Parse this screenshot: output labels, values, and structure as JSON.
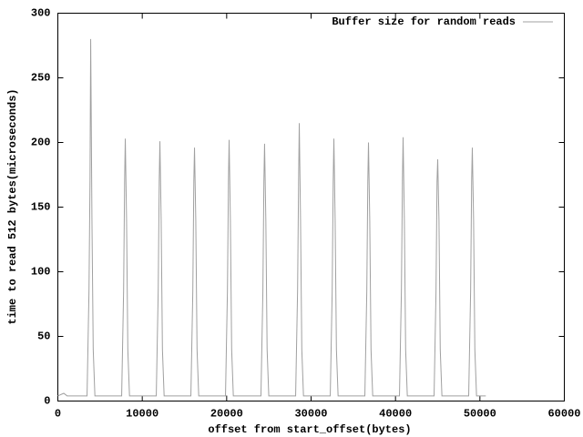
{
  "chart_data": {
    "type": "line",
    "xlabel": "offset from start_offset(bytes)",
    "ylabel": "time to read 512 bytes(microseconds)",
    "xlim": [
      0,
      60000
    ],
    "xticks": [
      0,
      10000,
      20000,
      30000,
      40000,
      50000,
      60000
    ],
    "ylim": [
      0,
      300
    ],
    "yticks": [
      0,
      50,
      100,
      150,
      200,
      250,
      300
    ],
    "legend": "top right",
    "series": [
      {
        "name": "Buffer size for random reads",
        "color": "#a0a0a0",
        "x": [
          0,
          700,
          1100,
          3460,
          3690,
          3810,
          3890,
          4040,
          4190,
          4390,
          7560,
          7790,
          7910,
          7990,
          8140,
          8290,
          8490,
          11660,
          11890,
          12010,
          12090,
          12240,
          12390,
          12590,
          15760,
          15990,
          16110,
          16190,
          16340,
          16490,
          16690,
          19860,
          20090,
          20210,
          20290,
          20440,
          20590,
          20790,
          24060,
          24290,
          24410,
          24490,
          24640,
          24790,
          24990,
          28170,
          28400,
          28520,
          28600,
          28750,
          28900,
          29100,
          32270,
          32500,
          32620,
          32700,
          32850,
          33000,
          33200,
          36370,
          36600,
          36720,
          36800,
          36950,
          37100,
          37300,
          40470,
          40700,
          40820,
          40900,
          41050,
          41200,
          41400,
          44570,
          44800,
          44920,
          45000,
          45150,
          45300,
          45500,
          48670,
          48900,
          49020,
          49100,
          49250,
          49400,
          49600,
          50700
        ],
        "values": [
          4,
          6,
          4,
          4,
          85,
          170,
          280,
          140,
          40,
          4,
          4,
          85,
          170,
          203,
          140,
          40,
          4,
          4,
          85,
          170,
          201,
          140,
          40,
          4,
          4,
          85,
          170,
          196,
          140,
          40,
          4,
          4,
          85,
          170,
          202,
          140,
          40,
          4,
          4,
          85,
          170,
          199,
          140,
          40,
          4,
          4,
          85,
          170,
          215,
          140,
          40,
          4,
          4,
          85,
          170,
          203,
          140,
          40,
          4,
          4,
          85,
          170,
          200,
          140,
          40,
          4,
          4,
          85,
          170,
          204,
          140,
          40,
          4,
          4,
          85,
          170,
          187,
          140,
          40,
          4,
          4,
          85,
          170,
          196,
          140,
          40,
          4,
          4
        ]
      }
    ]
  }
}
